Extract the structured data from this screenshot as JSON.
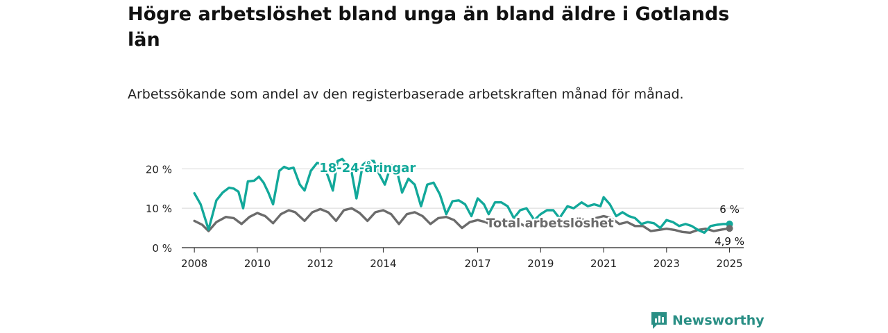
{
  "title": "Högre arbetslöshet bland unga än bland äldre i Gotlands län",
  "subtitle": "Arbetssökande som andel av den registerbaserade arbetskraften månad för månad.",
  "brand": "Newsworthy",
  "colors": {
    "youth": "#12a89a",
    "total": "#6b6b6b",
    "grid": "#d6d6d6",
    "brand": "#2a8f85"
  },
  "chart_data": {
    "type": "line",
    "ylim": [
      0,
      22
    ],
    "yticks": [
      {
        "value": 0,
        "label": "0 %"
      },
      {
        "value": 10,
        "label": "10 %"
      },
      {
        "value": 20,
        "label": "20 %"
      }
    ],
    "xlim": [
      2007.6,
      2025.45
    ],
    "xticks": [
      {
        "value": 2008,
        "label": "2008"
      },
      {
        "value": 2010,
        "label": "2010"
      },
      {
        "value": 2012,
        "label": "2012"
      },
      {
        "value": 2014,
        "label": "2014"
      },
      {
        "value": 2017,
        "label": "2017"
      },
      {
        "value": 2019,
        "label": "2019"
      },
      {
        "value": 2021,
        "label": "2021"
      },
      {
        "value": 2023,
        "label": "2023"
      },
      {
        "value": 2025,
        "label": "2025"
      }
    ],
    "grid": true,
    "series": [
      {
        "name": "18-24-åringar",
        "x": [
          2008.0,
          2008.2,
          2008.45,
          2008.7,
          2008.9,
          2009.1,
          2009.25,
          2009.4,
          2009.55,
          2009.7,
          2009.9,
          2010.05,
          2010.2,
          2010.35,
          2010.5,
          2010.7,
          2010.85,
          2011.0,
          2011.15,
          2011.35,
          2011.5,
          2011.7,
          2011.9,
          2012.1,
          2012.25,
          2012.4,
          2012.55,
          2012.7,
          2012.85,
          2013.0,
          2013.15,
          2013.35,
          2013.5,
          2013.7,
          2013.85,
          2014.05,
          2014.25,
          2014.45,
          2014.6,
          2014.8,
          2015.0,
          2015.2,
          2015.4,
          2015.6,
          2015.8,
          2016.0,
          2016.2,
          2016.4,
          2016.6,
          2016.8,
          2017.0,
          2017.2,
          2017.35,
          2017.55,
          2017.75,
          2017.95,
          2018.15,
          2018.35,
          2018.55,
          2018.8,
          2019.0,
          2019.2,
          2019.4,
          2019.6,
          2019.85,
          2020.05,
          2020.3,
          2020.5,
          2020.7,
          2020.9,
          2021.0,
          2021.2,
          2021.4,
          2021.6,
          2021.8,
          2022.0,
          2022.2,
          2022.4,
          2022.6,
          2022.8,
          2023.0,
          2023.2,
          2023.4,
          2023.6,
          2023.8,
          2024.0,
          2024.2,
          2024.4,
          2024.6,
          2024.8,
          2025.0
        ],
        "y": [
          13.8,
          11.0,
          4.6,
          12.0,
          14.0,
          15.2,
          15.0,
          14.2,
          10.0,
          16.8,
          17.0,
          18.0,
          16.5,
          14.0,
          11.0,
          19.5,
          20.5,
          20.0,
          20.3,
          16.0,
          14.5,
          19.5,
          21.5,
          21.0,
          18.0,
          14.5,
          22.0,
          22.5,
          21.0,
          19.0,
          12.5,
          21.0,
          22.0,
          22.0,
          19.0,
          16.0,
          21.0,
          19.0,
          14.0,
          17.5,
          16.0,
          10.5,
          16.0,
          16.5,
          13.5,
          8.5,
          11.8,
          12.0,
          11.0,
          8.0,
          12.5,
          11.0,
          8.5,
          11.5,
          11.5,
          10.5,
          7.5,
          9.5,
          10.0,
          7.0,
          8.5,
          9.5,
          9.5,
          7.5,
          10.5,
          10.0,
          11.5,
          10.5,
          11.0,
          10.5,
          12.8,
          11.0,
          8.0,
          9.0,
          8.0,
          7.5,
          6.0,
          6.5,
          6.2,
          5.0,
          7.0,
          6.5,
          5.5,
          6.0,
          5.5,
          4.5,
          3.8,
          5.5,
          5.8,
          6.0,
          6.0
        ]
      },
      {
        "name": "Total arbetslöshet",
        "x": [
          2008.0,
          2008.25,
          2008.45,
          2008.7,
          2009.0,
          2009.25,
          2009.5,
          2009.75,
          2010.0,
          2010.25,
          2010.5,
          2010.75,
          2011.0,
          2011.2,
          2011.5,
          2011.75,
          2012.0,
          2012.25,
          2012.5,
          2012.75,
          2013.0,
          2013.25,
          2013.5,
          2013.75,
          2014.0,
          2014.25,
          2014.5,
          2014.75,
          2015.0,
          2015.25,
          2015.5,
          2015.75,
          2016.0,
          2016.25,
          2016.5,
          2016.75,
          2017.0,
          2017.25,
          2017.5,
          2017.75,
          2018.0,
          2018.25,
          2018.5,
          2018.75,
          2019.0,
          2019.25,
          2019.5,
          2019.75,
          2020.0,
          2020.25,
          2020.5,
          2020.75,
          2021.0,
          2021.25,
          2021.5,
          2021.75,
          2022.0,
          2022.25,
          2022.5,
          2022.75,
          2023.0,
          2023.25,
          2023.5,
          2023.75,
          2024.0,
          2024.25,
          2024.5,
          2024.75,
          2025.0
        ],
        "y": [
          6.8,
          5.8,
          4.2,
          6.5,
          7.8,
          7.5,
          6.0,
          7.8,
          8.8,
          8.0,
          6.2,
          8.5,
          9.5,
          9.0,
          6.8,
          9.0,
          9.8,
          9.0,
          6.8,
          9.5,
          10.0,
          8.8,
          6.8,
          9.0,
          9.5,
          8.5,
          6.0,
          8.5,
          9.0,
          8.0,
          6.0,
          7.5,
          7.8,
          7.0,
          5.0,
          6.5,
          7.0,
          6.5,
          5.5,
          6.5,
          7.0,
          6.5,
          5.5,
          6.5,
          6.8,
          6.5,
          6.0,
          6.5,
          7.0,
          7.5,
          6.5,
          7.5,
          8.0,
          7.5,
          6.0,
          6.5,
          5.5,
          5.5,
          4.2,
          4.5,
          4.8,
          4.5,
          4.0,
          3.8,
          4.5,
          4.8,
          4.2,
          4.6,
          4.9
        ]
      }
    ],
    "annotations": [
      {
        "text": "18-24-åringar",
        "x": 2013.5,
        "y": 19.2,
        "series": 0
      },
      {
        "text": "Total arbetslöshet",
        "x": 2019.3,
        "y": 5.2,
        "series": 1
      },
      {
        "text": "6 %",
        "series": 0,
        "end": true
      },
      {
        "text": "4,9 %",
        "series": 1,
        "end": true
      }
    ]
  }
}
